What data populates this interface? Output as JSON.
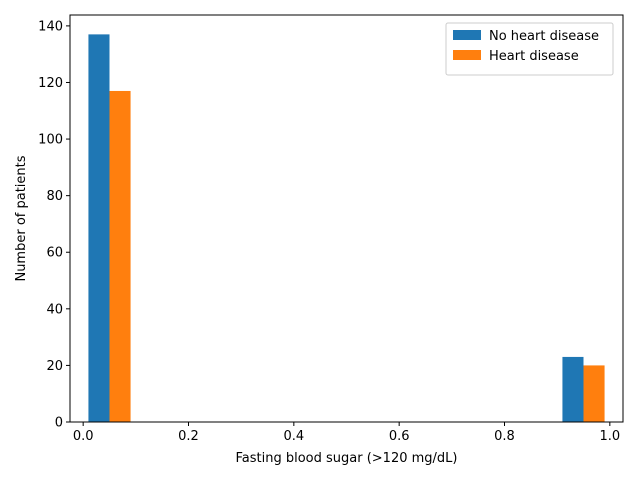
{
  "chart_data": {
    "type": "bar",
    "title": "",
    "xlabel": "Fasting blood sugar (>120 mg/dL)",
    "ylabel": "Number of patients",
    "xlim": [
      -0.025,
      1.025
    ],
    "ylim": [
      0,
      143.85
    ],
    "bar_width": 0.04,
    "xticks": [
      0.0,
      0.2,
      0.4,
      0.6,
      0.8,
      1.0
    ],
    "xtick_labels": [
      "0.0",
      "0.2",
      "0.4",
      "0.6",
      "0.8",
      "1.0"
    ],
    "yticks": [
      0,
      20,
      40,
      60,
      80,
      100,
      120,
      140
    ],
    "ytick_labels": [
      "0",
      "20",
      "40",
      "60",
      "80",
      "100",
      "120",
      "140"
    ],
    "grid": false,
    "legend_position": "top-right",
    "series": [
      {
        "name": "No heart disease",
        "color": "#1f77b4",
        "x": [
          0.01,
          0.91
        ],
        "values": [
          137,
          23
        ]
      },
      {
        "name": "Heart disease",
        "color": "#ff7f0e",
        "x": [
          0.05,
          0.95
        ],
        "values": [
          117,
          20
        ]
      }
    ]
  }
}
